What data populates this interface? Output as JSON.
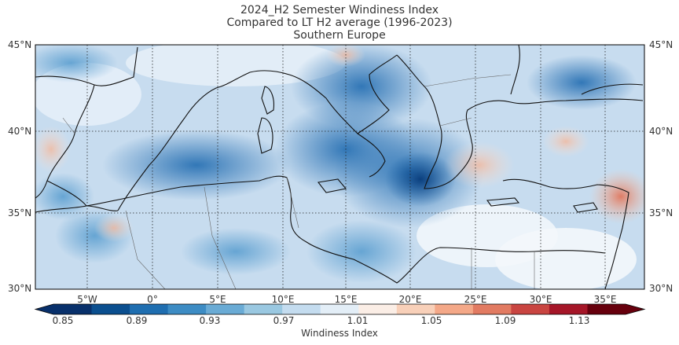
{
  "title": {
    "line1": "2024_H2 Semester Windiness Index",
    "line2": "Compared to LT H2 average (1996-2023)",
    "line3": "Southern Europe"
  },
  "map": {
    "lat_labels": [
      "45°N",
      "40°N",
      "35°N",
      "30°N"
    ],
    "lon_labels": [
      "5°W",
      "0°",
      "5°E",
      "10°E",
      "15°E",
      "20°E",
      "25°E",
      "30°E",
      "35°E"
    ]
  },
  "colorbar": {
    "label": "Windiness Index",
    "ticks": [
      "0.85",
      "0.89",
      "0.93",
      "0.97",
      "1.01",
      "1.05",
      "1.09",
      "1.13"
    ],
    "colors": [
      "#08306b",
      "#0b4f8f",
      "#1f6eb0",
      "#3d8cc4",
      "#6aabd5",
      "#9ac8e1",
      "#c4dcef",
      "#e3eef7",
      "#fbeee6",
      "#f8d0b9",
      "#f4a888",
      "#e27b62",
      "#c94541",
      "#a51628",
      "#67000d"
    ]
  }
}
